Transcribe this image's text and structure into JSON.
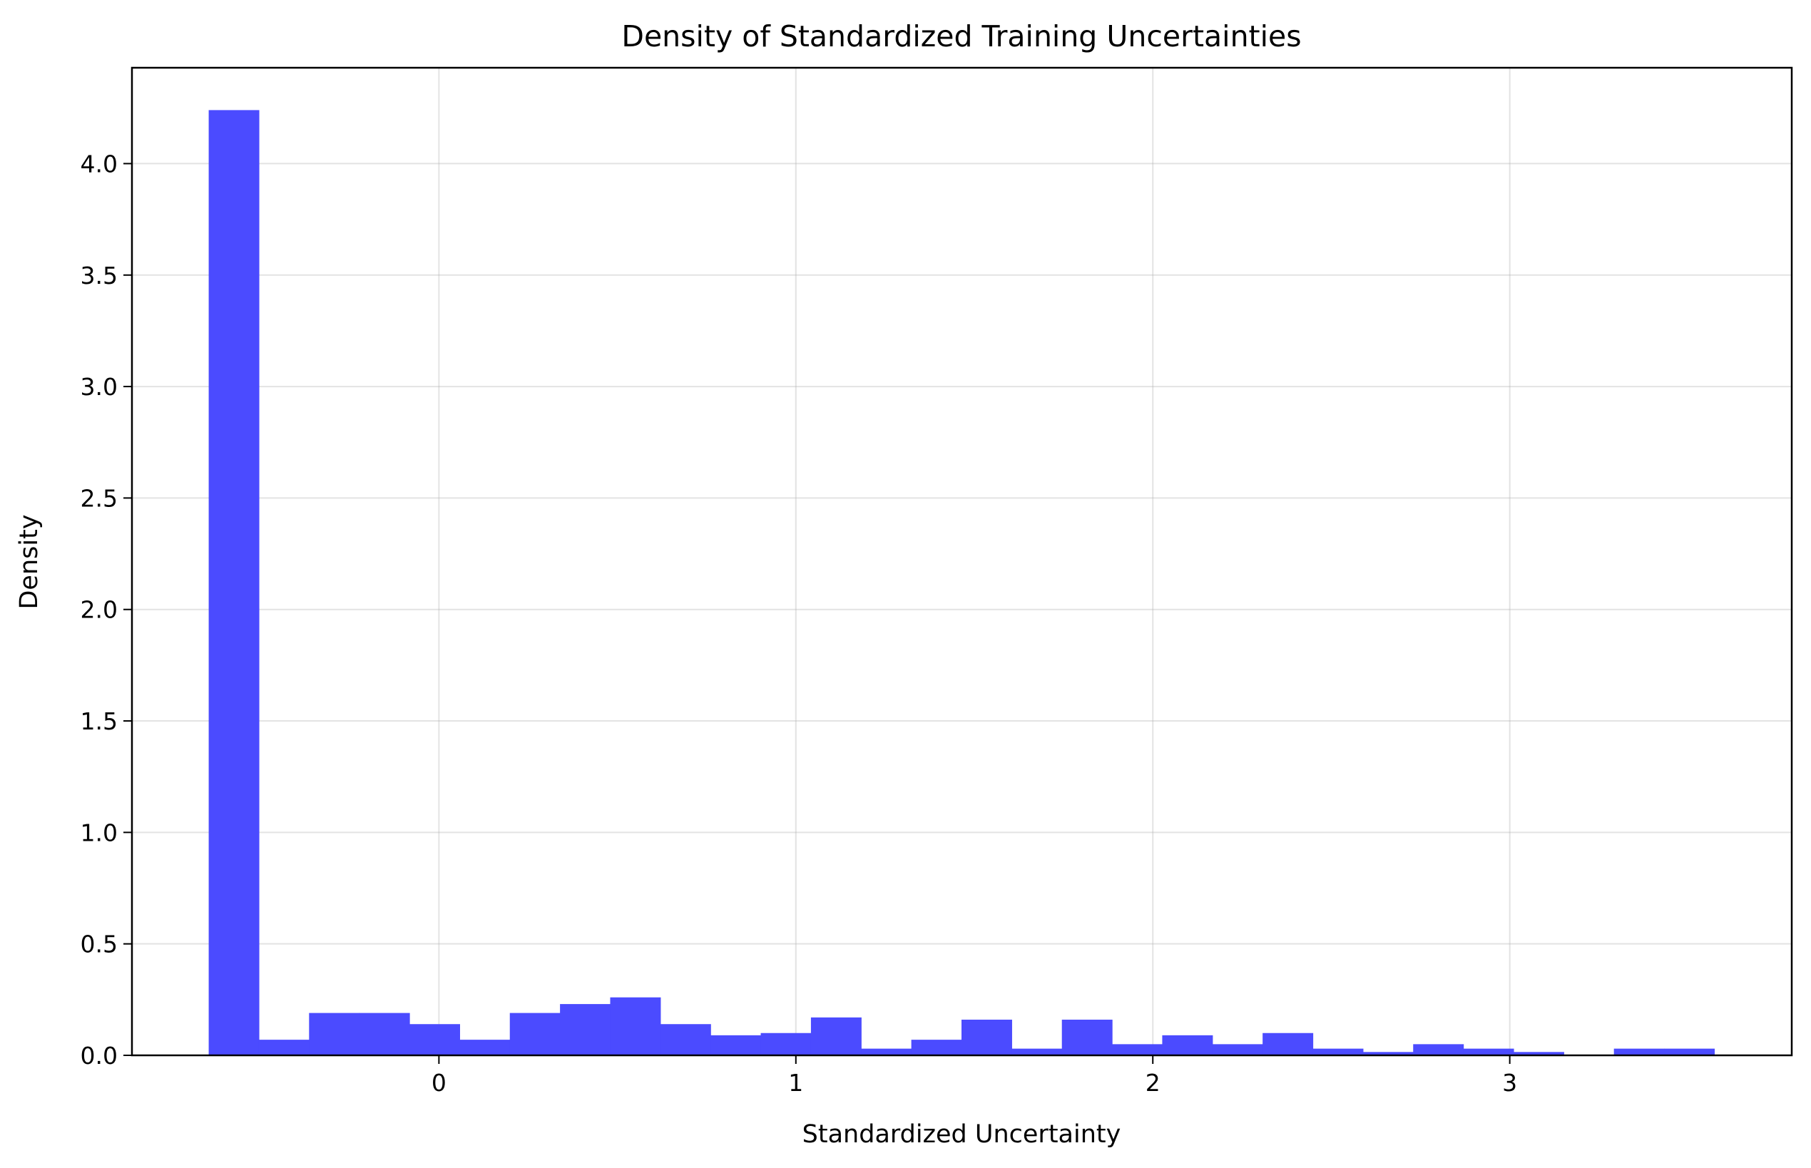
{
  "chart_data": {
    "type": "bar",
    "title": "Density of Standardized Training Uncertainties",
    "xlabel": "Standardized Uncertainty",
    "ylabel": "Density",
    "xlim": [
      -0.86,
      3.79
    ],
    "ylim": [
      0,
      4.43
    ],
    "xticks": [
      0,
      1,
      2,
      3
    ],
    "yticks": [
      0.0,
      0.5,
      1.0,
      1.5,
      2.0,
      2.5,
      3.0,
      3.5,
      4.0
    ],
    "ytick_labels": [
      "0.0",
      "0.5",
      "1.0",
      "1.5",
      "2.0",
      "2.5",
      "3.0",
      "3.5",
      "4.0"
    ],
    "grid": true,
    "color": "#4b4bff",
    "bin_start": -0.645,
    "bin_width": 0.1406,
    "values": [
      4.24,
      0.07,
      0.19,
      0.19,
      0.14,
      0.07,
      0.19,
      0.23,
      0.26,
      0.14,
      0.09,
      0.1,
      0.17,
      0.03,
      0.07,
      0.16,
      0.03,
      0.16,
      0.05,
      0.09,
      0.05,
      0.1,
      0.03,
      0.015,
      0.05,
      0.03,
      0.015,
      0.0,
      0.03,
      0.03
    ]
  }
}
